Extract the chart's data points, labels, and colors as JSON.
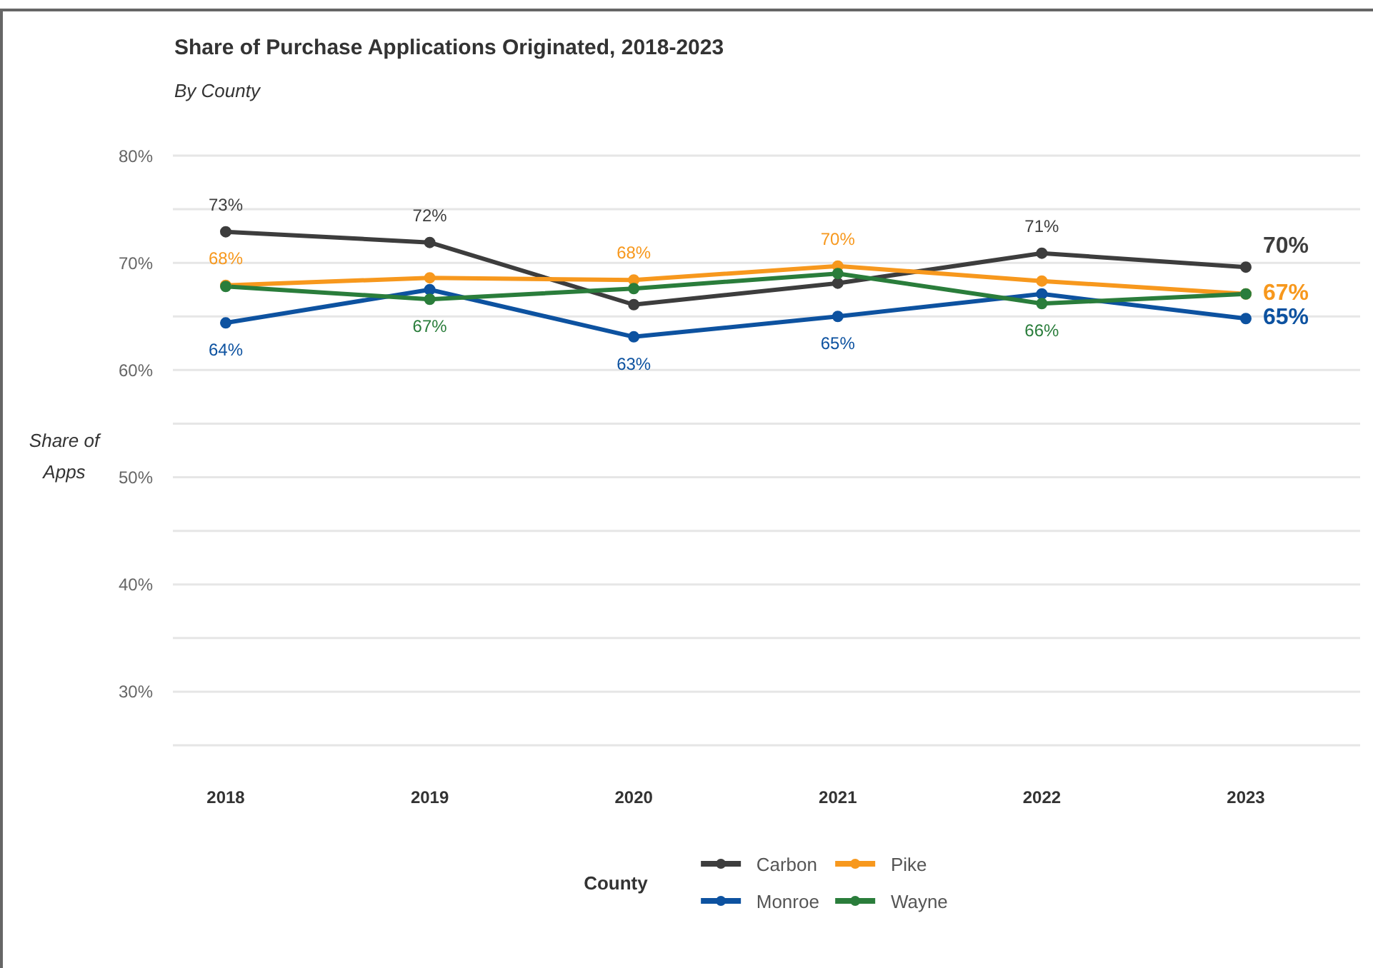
{
  "chart_data": {
    "type": "line",
    "title": "Share of Purchase Applications Originated, 2018-2023",
    "subtitle": "By County",
    "ylabel": "Share of Apps",
    "legend_title": "County",
    "categories": [
      "2018",
      "2019",
      "2020",
      "2021",
      "2022",
      "2023"
    ],
    "series": [
      {
        "name": "Carbon",
        "color": "#3d3d3d",
        "values": [
          72.9,
          71.9,
          66.1,
          68.1,
          70.9,
          69.6
        ],
        "value_labels": [
          "73%",
          "72%",
          null,
          null,
          "71%",
          "70%"
        ]
      },
      {
        "name": "Pike",
        "color": "#f7981d",
        "values": [
          67.9,
          68.6,
          68.4,
          69.7,
          68.3,
          67.1
        ],
        "value_labels": [
          "68%",
          null,
          "68%",
          "70%",
          null,
          "67%"
        ]
      },
      {
        "name": "Monroe",
        "color": "#0d52a0",
        "values": [
          64.4,
          67.5,
          63.1,
          65.0,
          67.1,
          64.8
        ],
        "value_labels": [
          "64%",
          null,
          "63%",
          "65%",
          null,
          "65%"
        ]
      },
      {
        "name": "Wayne",
        "color": "#2a7d3b",
        "values": [
          67.8,
          66.6,
          67.6,
          69.0,
          66.2,
          67.1
        ],
        "value_labels": [
          null,
          "67%",
          null,
          null,
          "66%",
          null
        ]
      }
    ],
    "ylim": [
      25,
      80
    ],
    "yticks": [
      {
        "value": 25,
        "label": null
      },
      {
        "value": 30,
        "label": "30%"
      },
      {
        "value": 35,
        "label": null
      },
      {
        "value": 40,
        "label": "40%"
      },
      {
        "value": 45,
        "label": null
      },
      {
        "value": 50,
        "label": "50%"
      },
      {
        "value": 55,
        "label": null
      },
      {
        "value": 60,
        "label": "60%"
      },
      {
        "value": 65,
        "label": null
      },
      {
        "value": 70,
        "label": "70%"
      },
      {
        "value": 75,
        "label": null
      },
      {
        "value": 80,
        "label": "80%"
      }
    ],
    "grid": "y",
    "legend": "bottom",
    "marker": "circle"
  }
}
